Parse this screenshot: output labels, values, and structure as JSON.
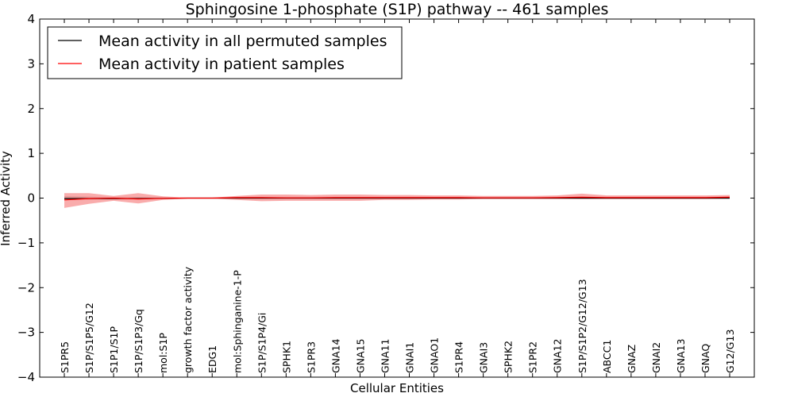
{
  "chart_data": {
    "type": "line",
    "title": "Sphingosine 1-phosphate (S1P) pathway -- 461 samples",
    "xlabel": "Cellular Entities",
    "ylabel": "Inferred Activity",
    "ylim": [
      -4,
      4
    ],
    "yticks": [
      -4,
      -3,
      -2,
      -1,
      0,
      1,
      2,
      3,
      4
    ],
    "ytick_labels": [
      "−4",
      "−3",
      "−2",
      "−1",
      "0",
      "1",
      "2",
      "3",
      "4"
    ],
    "grid": false,
    "legend_position": "top-left",
    "categories": [
      "S1PR5",
      "S1P/S1P5/G12",
      "S1P1/S1P",
      "S1P/S1P3/Gq",
      "mol:S1P",
      "growth factor activity",
      "EDG1",
      "mol:Sphinganine-1-P",
      "S1P/S1P4/Gi",
      "SPHK1",
      "S1PR3",
      "GNA14",
      "GNA15",
      "GNA11",
      "GNAI1",
      "GNAO1",
      "S1PR4",
      "GNAI3",
      "SPHK2",
      "S1PR2",
      "GNA12",
      "S1P/S1P2/G12/G13",
      "ABCC1",
      "GNAZ",
      "GNAI2",
      "GNA13",
      "GNAQ",
      "G12/G13"
    ],
    "series": [
      {
        "name": "Mean activity in all permuted samples",
        "color": "#000000",
        "values": [
          -0.01,
          -0.01,
          -0.01,
          -0.01,
          -0.005,
          0,
          0,
          0,
          0,
          0,
          0,
          0,
          0,
          0,
          0,
          0,
          0,
          0,
          0,
          0,
          0,
          0,
          0,
          0,
          0,
          0,
          0,
          0
        ],
        "band_lower": [
          -0.04,
          -0.03,
          -0.02,
          -0.02,
          -0.01,
          -0.005,
          -0.005,
          -0.01,
          -0.01,
          -0.01,
          -0.01,
          -0.01,
          -0.01,
          -0.01,
          -0.01,
          -0.01,
          -0.01,
          -0.01,
          -0.01,
          -0.01,
          -0.01,
          -0.02,
          -0.02,
          -0.02,
          -0.02,
          -0.02,
          -0.02,
          -0.02
        ],
        "band_upper": [
          0.04,
          0.03,
          0.02,
          0.02,
          0.01,
          0.005,
          0.005,
          0.01,
          0.01,
          0.01,
          0.01,
          0.01,
          0.01,
          0.01,
          0.01,
          0.01,
          0.01,
          0.01,
          0.01,
          0.01,
          0.01,
          0.02,
          0.02,
          0.02,
          0.02,
          0.02,
          0.02,
          0.02
        ]
      },
      {
        "name": "Mean activity in patient samples",
        "color": "#ff0000",
        "values": [
          -0.04,
          -0.01,
          0.0,
          -0.02,
          -0.005,
          0,
          0,
          0.01,
          0.01,
          0.005,
          0.005,
          0.01,
          0.01,
          0.01,
          0.01,
          0.01,
          0.01,
          0.005,
          0.005,
          0.005,
          0.01,
          0.02,
          0.01,
          0.01,
          0.01,
          0.01,
          0.01,
          0.02
        ],
        "band_lower": [
          -0.22,
          -0.13,
          -0.06,
          -0.12,
          -0.04,
          -0.01,
          -0.01,
          -0.04,
          -0.07,
          -0.06,
          -0.06,
          -0.06,
          -0.06,
          -0.04,
          -0.04,
          -0.03,
          -0.03,
          -0.02,
          -0.02,
          -0.02,
          -0.02,
          -0.02,
          -0.02,
          -0.02,
          -0.02,
          -0.02,
          -0.02,
          -0.01
        ],
        "band_upper": [
          0.11,
          0.11,
          0.05,
          0.11,
          0.04,
          0.01,
          0.01,
          0.05,
          0.08,
          0.08,
          0.07,
          0.08,
          0.08,
          0.07,
          0.07,
          0.06,
          0.06,
          0.05,
          0.05,
          0.05,
          0.06,
          0.1,
          0.06,
          0.06,
          0.06,
          0.06,
          0.06,
          0.07
        ]
      }
    ]
  }
}
